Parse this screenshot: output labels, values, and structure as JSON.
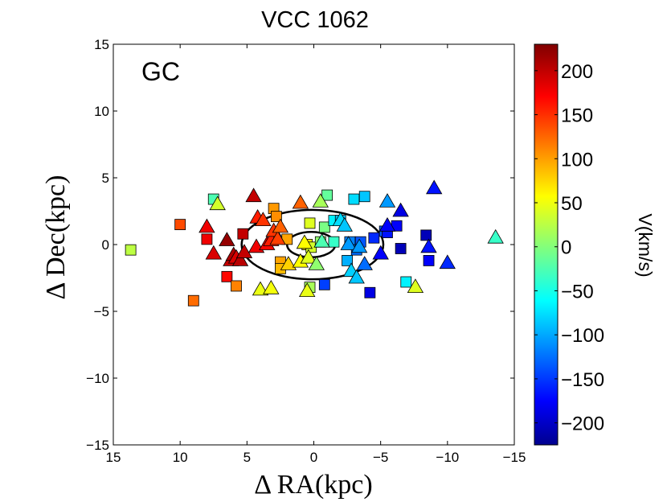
{
  "chart_data": {
    "type": "scatter",
    "title": "VCC 1062",
    "panel_label": "GC",
    "xlabel": "Δ RA(kpc)",
    "ylabel": "Δ Dec(kpc)",
    "xlim": [
      15,
      -15
    ],
    "ylim": [
      -15,
      15
    ],
    "x_ticks": [
      15,
      10,
      5,
      0,
      -5,
      -10,
      -15
    ],
    "x_tick_labels": [
      "15",
      "10",
      "5",
      "0",
      "−5",
      "−10",
      "−15"
    ],
    "y_ticks": [
      15,
      10,
      5,
      0,
      -5,
      -10,
      -15
    ],
    "y_tick_labels": [
      "15",
      "10",
      "5",
      "0",
      "−5",
      "−10",
      "−15"
    ],
    "colorbar": {
      "label": "V(km/s)",
      "range": [
        -225,
        230
      ],
      "ticks": [
        200,
        150,
        100,
        50,
        0,
        -50,
        -100,
        -150,
        -200
      ],
      "tick_labels": [
        "200",
        "150",
        "100",
        "50",
        "0",
        "−50",
        "−100",
        "−150",
        "−200"
      ],
      "colormap": "jet"
    },
    "ellipses": [
      {
        "name": "inner",
        "center": [
          0.2,
          0.0
        ],
        "semi_major": 1.8,
        "semi_minor": 0.95
      },
      {
        "name": "outer",
        "center": [
          0.1,
          0.0
        ],
        "semi_major": 5.3,
        "semi_minor": 2.6
      }
    ],
    "series": [
      {
        "name": "squares",
        "marker": "square",
        "points": [
          {
            "x": 13.7,
            "y": -0.4,
            "v": 30
          },
          {
            "x": 10.0,
            "y": 1.5,
            "v": 140
          },
          {
            "x": 9.0,
            "y": -4.2,
            "v": 125
          },
          {
            "x": 8.0,
            "y": 0.4,
            "v": 180
          },
          {
            "x": 7.5,
            "y": 3.4,
            "v": -20
          },
          {
            "x": 6.5,
            "y": -2.4,
            "v": 170
          },
          {
            "x": 5.8,
            "y": -3.1,
            "v": 115
          },
          {
            "x": 5.3,
            "y": 0.8,
            "v": 200
          },
          {
            "x": 3.0,
            "y": 2.7,
            "v": 105
          },
          {
            "x": 2.8,
            "y": 2.1,
            "v": 110
          },
          {
            "x": 2.5,
            "y": -1.3,
            "v": 100
          },
          {
            "x": 2.5,
            "y": -1.8,
            "v": 90
          },
          {
            "x": 2.0,
            "y": 0.4,
            "v": 100
          },
          {
            "x": 0.5,
            "y": 0.0,
            "v": 70
          },
          {
            "x": 0.3,
            "y": 1.6,
            "v": 45
          },
          {
            "x": 0.2,
            "y": -0.2,
            "v": 40
          },
          {
            "x": 0.3,
            "y": -3.2,
            "v": 20
          },
          {
            "x": -0.8,
            "y": 1.3,
            "v": 0
          },
          {
            "x": -1.0,
            "y": 3.7,
            "v": -10
          },
          {
            "x": -0.5,
            "y": 0.2,
            "v": 10
          },
          {
            "x": -0.8,
            "y": -3.0,
            "v": -140
          },
          {
            "x": -1.5,
            "y": 0.2,
            "v": -30
          },
          {
            "x": -1.5,
            "y": 1.8,
            "v": -60
          },
          {
            "x": -2.0,
            "y": 1.8,
            "v": -80
          },
          {
            "x": -2.5,
            "y": -1.2,
            "v": -90
          },
          {
            "x": -2.7,
            "y": 0.2,
            "v": -110
          },
          {
            "x": -3.0,
            "y": 3.4,
            "v": -70
          },
          {
            "x": -3.2,
            "y": -0.4,
            "v": -120
          },
          {
            "x": -3.5,
            "y": 0.2,
            "v": -130
          },
          {
            "x": -3.8,
            "y": 3.6,
            "v": -80
          },
          {
            "x": -4.2,
            "y": -3.6,
            "v": -180
          },
          {
            "x": -4.5,
            "y": 0.5,
            "v": -150
          },
          {
            "x": -5.3,
            "y": 1.0,
            "v": -130
          },
          {
            "x": -5.5,
            "y": 0.9,
            "v": -160
          },
          {
            "x": -6.2,
            "y": 1.4,
            "v": -170
          },
          {
            "x": -6.5,
            "y": -0.3,
            "v": -200
          },
          {
            "x": -6.9,
            "y": -2.8,
            "v": -60
          },
          {
            "x": -8.4,
            "y": 0.7,
            "v": -200
          },
          {
            "x": -8.6,
            "y": -1.2,
            "v": -170
          }
        ]
      },
      {
        "name": "triangles",
        "marker": "triangle",
        "points": [
          {
            "x": 8.0,
            "y": 1.3,
            "v": 180
          },
          {
            "x": 7.5,
            "y": -0.7,
            "v": 190
          },
          {
            "x": 7.2,
            "y": 3.0,
            "v": 40
          },
          {
            "x": 6.5,
            "y": 0.3,
            "v": 220
          },
          {
            "x": 6.2,
            "y": -1.2,
            "v": 200
          },
          {
            "x": 6.0,
            "y": -0.8,
            "v": 210
          },
          {
            "x": 5.8,
            "y": -1.0,
            "v": 190
          },
          {
            "x": 5.5,
            "y": -1.2,
            "v": 205
          },
          {
            "x": 5.2,
            "y": -0.6,
            "v": 200
          },
          {
            "x": 4.5,
            "y": 3.6,
            "v": 200
          },
          {
            "x": 4.3,
            "y": -0.2,
            "v": 180
          },
          {
            "x": 4.2,
            "y": 2.0,
            "v": 160
          },
          {
            "x": 4.0,
            "y": -3.4,
            "v": 50
          },
          {
            "x": 3.8,
            "y": 1.8,
            "v": 150
          },
          {
            "x": 3.5,
            "y": 0.0,
            "v": 170
          },
          {
            "x": 3.2,
            "y": 0.3,
            "v": 160
          },
          {
            "x": 3.2,
            "y": -3.3,
            "v": 55
          },
          {
            "x": 3.0,
            "y": 1.0,
            "v": 150
          },
          {
            "x": 2.7,
            "y": 0.4,
            "v": 145
          },
          {
            "x": 2.5,
            "y": 1.3,
            "v": 130
          },
          {
            "x": 1.9,
            "y": -1.5,
            "v": 80
          },
          {
            "x": 1.0,
            "y": -1.3,
            "v": 60
          },
          {
            "x": 1.0,
            "y": 3.1,
            "v": 130
          },
          {
            "x": 0.7,
            "y": 0.1,
            "v": 60
          },
          {
            "x": 0.4,
            "y": -1.0,
            "v": 45
          },
          {
            "x": 0.5,
            "y": -3.5,
            "v": 50
          },
          {
            "x": -0.2,
            "y": -1.5,
            "v": 10
          },
          {
            "x": -0.5,
            "y": 3.2,
            "v": 20
          },
          {
            "x": -0.6,
            "y": 0.2,
            "v": -20
          },
          {
            "x": -2.0,
            "y": 1.8,
            "v": -70
          },
          {
            "x": -2.3,
            "y": 1.4,
            "v": -80
          },
          {
            "x": -2.6,
            "y": 0.0,
            "v": -100
          },
          {
            "x": -2.8,
            "y": -2.0,
            "v": -75
          },
          {
            "x": -3.2,
            "y": -2.5,
            "v": -80
          },
          {
            "x": -3.4,
            "y": -0.2,
            "v": -100
          },
          {
            "x": -3.8,
            "y": -1.5,
            "v": -120
          },
          {
            "x": -5.0,
            "y": -0.7,
            "v": -170
          },
          {
            "x": -5.5,
            "y": 1.4,
            "v": -170
          },
          {
            "x": -5.5,
            "y": 3.2,
            "v": -100
          },
          {
            "x": -6.5,
            "y": 2.5,
            "v": -180
          },
          {
            "x": -7.6,
            "y": -3.2,
            "v": 45
          },
          {
            "x": -8.6,
            "y": -0.2,
            "v": -160
          },
          {
            "x": -9.0,
            "y": 4.2,
            "v": -160
          },
          {
            "x": -10.0,
            "y": -1.4,
            "v": -150
          },
          {
            "x": -13.6,
            "y": 0.5,
            "v": -30
          }
        ]
      }
    ]
  }
}
